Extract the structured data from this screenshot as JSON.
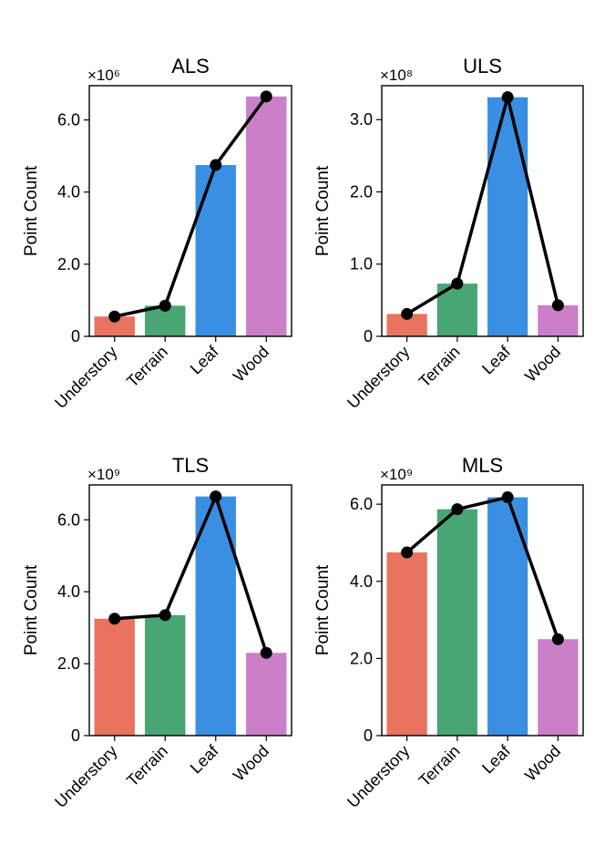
{
  "colors": {
    "Understory": "#e8735e",
    "Terrain": "#4aa574",
    "Leaf": "#3a8fe3",
    "Wood": "#cb7fc9"
  },
  "chart_data": [
    {
      "type": "bar",
      "title": "ALS",
      "categories": [
        "Understory",
        "Terrain",
        "Leaf",
        "Wood"
      ],
      "values": [
        0.55,
        0.85,
        4.75,
        6.65
      ],
      "line_values": [
        0.55,
        0.85,
        4.75,
        6.65
      ],
      "exponent_label": "×10⁶",
      "xlabel": "",
      "ylabel": "Point Count",
      "ylim": [
        0,
        6.95
      ],
      "yticks": [
        0,
        2,
        4,
        6
      ],
      "ytick_labels": [
        "0",
        "2.0",
        "4.0",
        "6.0"
      ],
      "grid": false
    },
    {
      "type": "bar",
      "title": "ULS",
      "categories": [
        "Understory",
        "Terrain",
        "Leaf",
        "Wood"
      ],
      "values": [
        0.31,
        0.73,
        3.31,
        0.43
      ],
      "line_values": [
        0.31,
        0.73,
        3.31,
        0.43
      ],
      "exponent_label": "×10⁸",
      "xlabel": "",
      "ylabel": "Point Count",
      "ylim": [
        0,
        3.47
      ],
      "yticks": [
        0,
        1,
        2,
        3
      ],
      "ytick_labels": [
        "0",
        "1.0",
        "2.0",
        "3.0"
      ],
      "grid": false
    },
    {
      "type": "bar",
      "title": "TLS",
      "categories": [
        "Understory",
        "Terrain",
        "Leaf",
        "Wood"
      ],
      "values": [
        3.25,
        3.35,
        6.65,
        2.3
      ],
      "line_values": [
        3.25,
        3.35,
        6.65,
        2.3
      ],
      "exponent_label": "×10⁹",
      "xlabel": "",
      "ylabel": "Point Count",
      "ylim": [
        0,
        6.97
      ],
      "yticks": [
        0,
        2,
        4,
        6
      ],
      "ytick_labels": [
        "0",
        "2.0",
        "4.0",
        "6.0"
      ],
      "grid": false
    },
    {
      "type": "bar",
      "title": "MLS",
      "categories": [
        "Understory",
        "Terrain",
        "Leaf",
        "Wood"
      ],
      "values": [
        4.75,
        5.87,
        6.18,
        2.5
      ],
      "line_values": [
        4.75,
        5.87,
        6.18,
        2.5
      ],
      "exponent_label": "×10⁹",
      "xlabel": "",
      "ylabel": "Point Count",
      "ylim": [
        0,
        6.5
      ],
      "yticks": [
        0,
        2,
        4,
        6
      ],
      "ytick_labels": [
        "0",
        "2.0",
        "4.0",
        "6.0"
      ],
      "grid": false
    }
  ]
}
